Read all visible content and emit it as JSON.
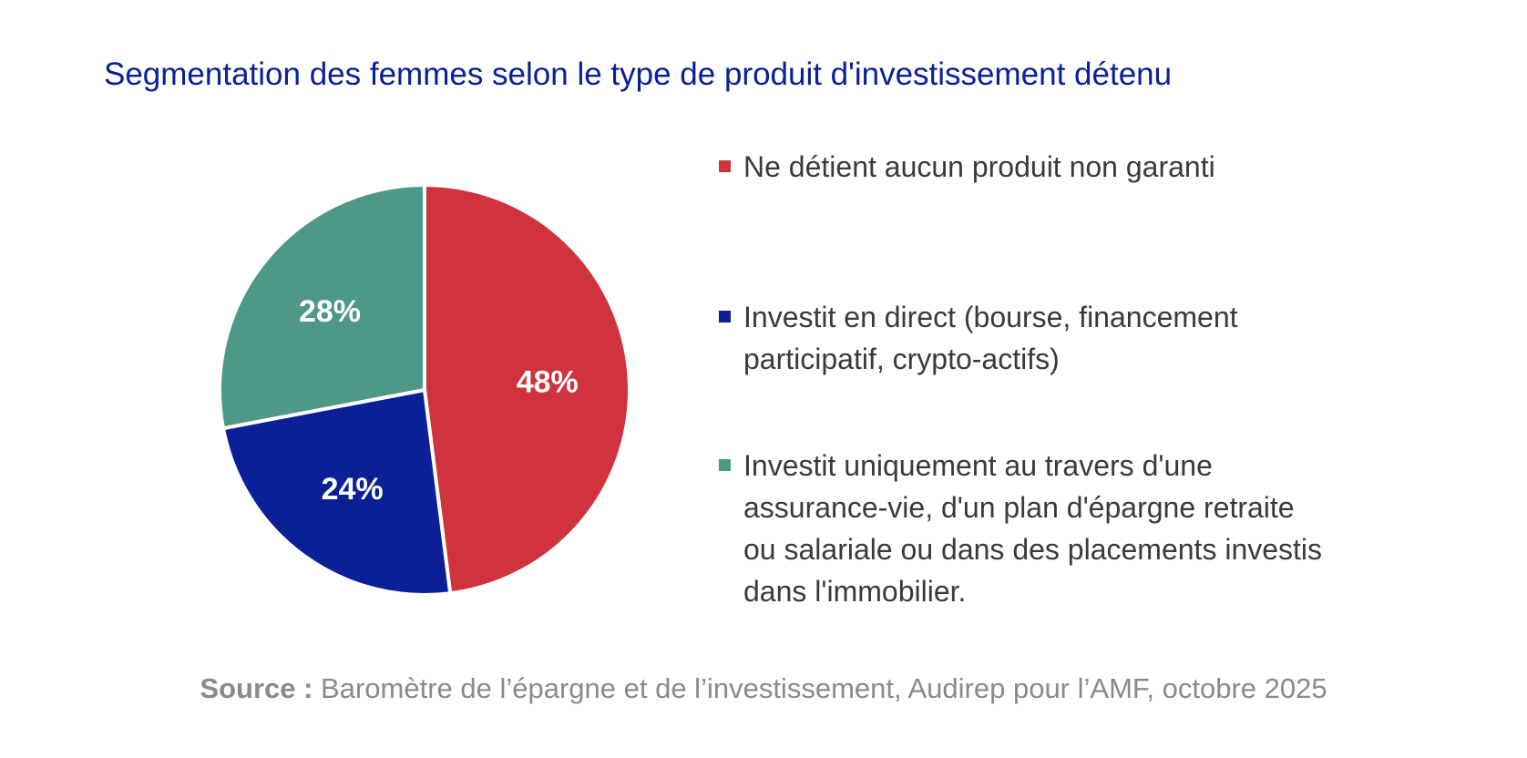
{
  "chart_data": {
    "type": "pie",
    "title": "Segmentation des femmes selon le type de produit d'investissement détenu",
    "slices": [
      {
        "name": "Ne détient aucun produit non garanti",
        "value": 48,
        "label": "48%",
        "color": "#d0333d"
      },
      {
        "name": "Investit en direct (bourse, financement participatif, crypto-actifs)",
        "value": 24,
        "label": "24%",
        "color": "#0b2097"
      },
      {
        "name": "Investit uniquement au travers d'une assurance-vie, d'un plan d'épargne retraite ou salariale ou dans des placements investis dans l'immobilier.",
        "value": 28,
        "label": "28%",
        "color": "#4e9888"
      }
    ],
    "legend_position": "right"
  },
  "legend": {
    "items": [
      {
        "lines": [
          "Ne détient aucun produit non garanti"
        ]
      },
      {
        "lines": [
          "Investit en direct (bourse, financement",
          "participatif, crypto-actifs)"
        ]
      },
      {
        "lines": [
          "Investit uniquement au travers d'une",
          "assurance-vie, d'un plan d'épargne retraite",
          "ou salariale ou dans des placements investis",
          "dans l'immobilier."
        ]
      }
    ]
  },
  "source": {
    "label": "Source :",
    "text": " Baromètre de l’épargne et de l’investissement, Audirep pour l’AMF, octobre 2025"
  },
  "colors": {
    "title": "#0b2097",
    "red": "#d0333d",
    "blue": "#0b2097",
    "teal": "#4e9888"
  }
}
